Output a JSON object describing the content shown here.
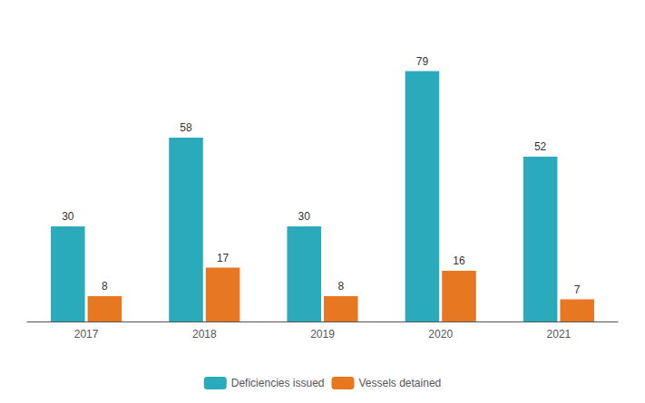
{
  "chart_data": {
    "type": "bar",
    "categories": [
      "2017",
      "2018",
      "2019",
      "2020",
      "2021"
    ],
    "series": [
      {
        "name": "Deficiencies issued",
        "color": "#2BAABC",
        "values": [
          30,
          58,
          30,
          79,
          52
        ]
      },
      {
        "name": "Vessels detained",
        "color": "#E87722",
        "values": [
          8,
          17,
          8,
          16,
          7
        ]
      }
    ],
    "ylim": [
      0,
      90
    ],
    "grid": false,
    "legend": "bottom",
    "data_labels": true,
    "tick_labels": "x"
  }
}
